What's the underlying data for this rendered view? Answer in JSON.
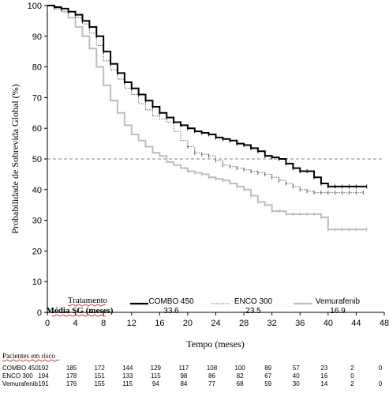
{
  "chart_data": {
    "type": "line",
    "subtype": "kaplan-meier",
    "ylabel": "Probabilidade de Sobrevida Global (%)",
    "xlabel": "Tempo (meses)",
    "xlim": [
      0,
      48
    ],
    "ylim": [
      0,
      100
    ],
    "xticks": [
      0,
      4,
      8,
      12,
      16,
      20,
      24,
      28,
      32,
      36,
      40,
      44,
      48
    ],
    "yticks": [
      0,
      10,
      20,
      30,
      40,
      50,
      60,
      70,
      80,
      90,
      100
    ],
    "reference_line": {
      "y": 50,
      "style": "dashed"
    },
    "grid": false,
    "legend": {
      "placement": "bottom",
      "header_line1": "Tratamento",
      "header_line2": "Média SG (meses)"
    },
    "series": [
      {
        "name": "COMBO 450",
        "median": "33.6",
        "color": "#000000",
        "style": "solid-thick",
        "x": [
          0,
          1,
          2,
          3,
          4,
          5,
          6,
          7,
          8,
          9,
          10,
          11,
          12,
          13,
          14,
          15,
          16,
          17,
          18,
          19,
          20,
          21,
          22,
          23,
          24,
          25,
          26,
          27,
          28,
          29,
          30,
          31,
          32,
          33,
          34,
          35,
          36,
          37,
          38,
          39,
          40,
          41,
          42,
          43,
          44,
          45.5
        ],
        "y": [
          100,
          99.5,
          99,
          98,
          97,
          95,
          93,
          90,
          85,
          81,
          78,
          75,
          73,
          71,
          69,
          67,
          65,
          63.5,
          62,
          61,
          60,
          59,
          58.5,
          58,
          57,
          56.5,
          56,
          55,
          54.5,
          53.5,
          52.5,
          51,
          50.5,
          50,
          48.5,
          47,
          46,
          46,
          44,
          42,
          41,
          41,
          41,
          41,
          41,
          41
        ]
      },
      {
        "name": "ENCO 300",
        "median": "23.5",
        "color": "#666666",
        "style": "dotted",
        "x": [
          0,
          1,
          2,
          3,
          4,
          5,
          6,
          7,
          8,
          9,
          10,
          11,
          12,
          13,
          14,
          15,
          16,
          17,
          18,
          19,
          20,
          21,
          22,
          23,
          24,
          25,
          26,
          27,
          28,
          29,
          30,
          31,
          32,
          33,
          34,
          35,
          36,
          37,
          38,
          39,
          40,
          41,
          42,
          43,
          44,
          45
        ],
        "y": [
          100,
          99.5,
          99,
          98,
          96,
          94,
          91,
          87,
          82,
          79,
          76,
          73,
          71,
          68,
          66,
          64,
          63,
          62,
          59,
          56,
          54,
          52,
          51.5,
          51,
          49.5,
          48,
          47.5,
          47,
          46.5,
          46,
          45.5,
          45,
          44,
          43,
          42,
          41,
          40,
          39.5,
          39,
          39,
          39,
          39,
          39,
          39,
          39,
          39
        ]
      },
      {
        "name": "Vemurafenib",
        "median": "16.9",
        "color": "#bdbdbd",
        "style": "solid-thick",
        "x": [
          0,
          1,
          2,
          3,
          4,
          5,
          6,
          7,
          8,
          9,
          10,
          11,
          12,
          13,
          14,
          15,
          16,
          17,
          18,
          19,
          20,
          21,
          22,
          23,
          24,
          25,
          26,
          27,
          28,
          29,
          30,
          31,
          32,
          33,
          34,
          35,
          36,
          37,
          38,
          39,
          40,
          41,
          42,
          43,
          44,
          45.5
        ],
        "y": [
          100,
          99,
          98,
          96,
          93,
          90,
          86,
          80,
          74,
          69,
          65,
          61,
          58,
          56,
          54,
          52,
          51,
          49,
          48,
          47,
          46,
          45.5,
          45,
          44,
          43.5,
          43,
          42,
          41,
          40,
          38,
          36,
          35,
          33,
          33,
          32,
          32,
          32,
          32,
          32,
          31,
          27,
          27,
          27,
          27,
          27,
          27
        ]
      }
    ],
    "risk_table": {
      "title": "Pacientes em risco",
      "times": [
        0,
        4,
        8,
        12,
        16,
        20,
        24,
        28,
        32,
        36,
        40,
        44,
        48
      ],
      "rows": [
        {
          "label": "COMBO 450",
          "values": [
            "192",
            "185",
            "172",
            "144",
            "129",
            "117",
            "108",
            "100",
            "89",
            "57",
            "23",
            "2",
            "0"
          ]
        },
        {
          "label": "ENCO 300",
          "values": [
            "194",
            "178",
            "151",
            "133",
            "115",
            "98",
            "86",
            "82",
            "67",
            "40",
            "16",
            "0",
            ""
          ]
        },
        {
          "label": "Vemurafenib",
          "values": [
            "191",
            "176",
            "155",
            "115",
            "94",
            "84",
            "77",
            "68",
            "59",
            "30",
            "14",
            "2",
            "0"
          ]
        }
      ]
    }
  }
}
